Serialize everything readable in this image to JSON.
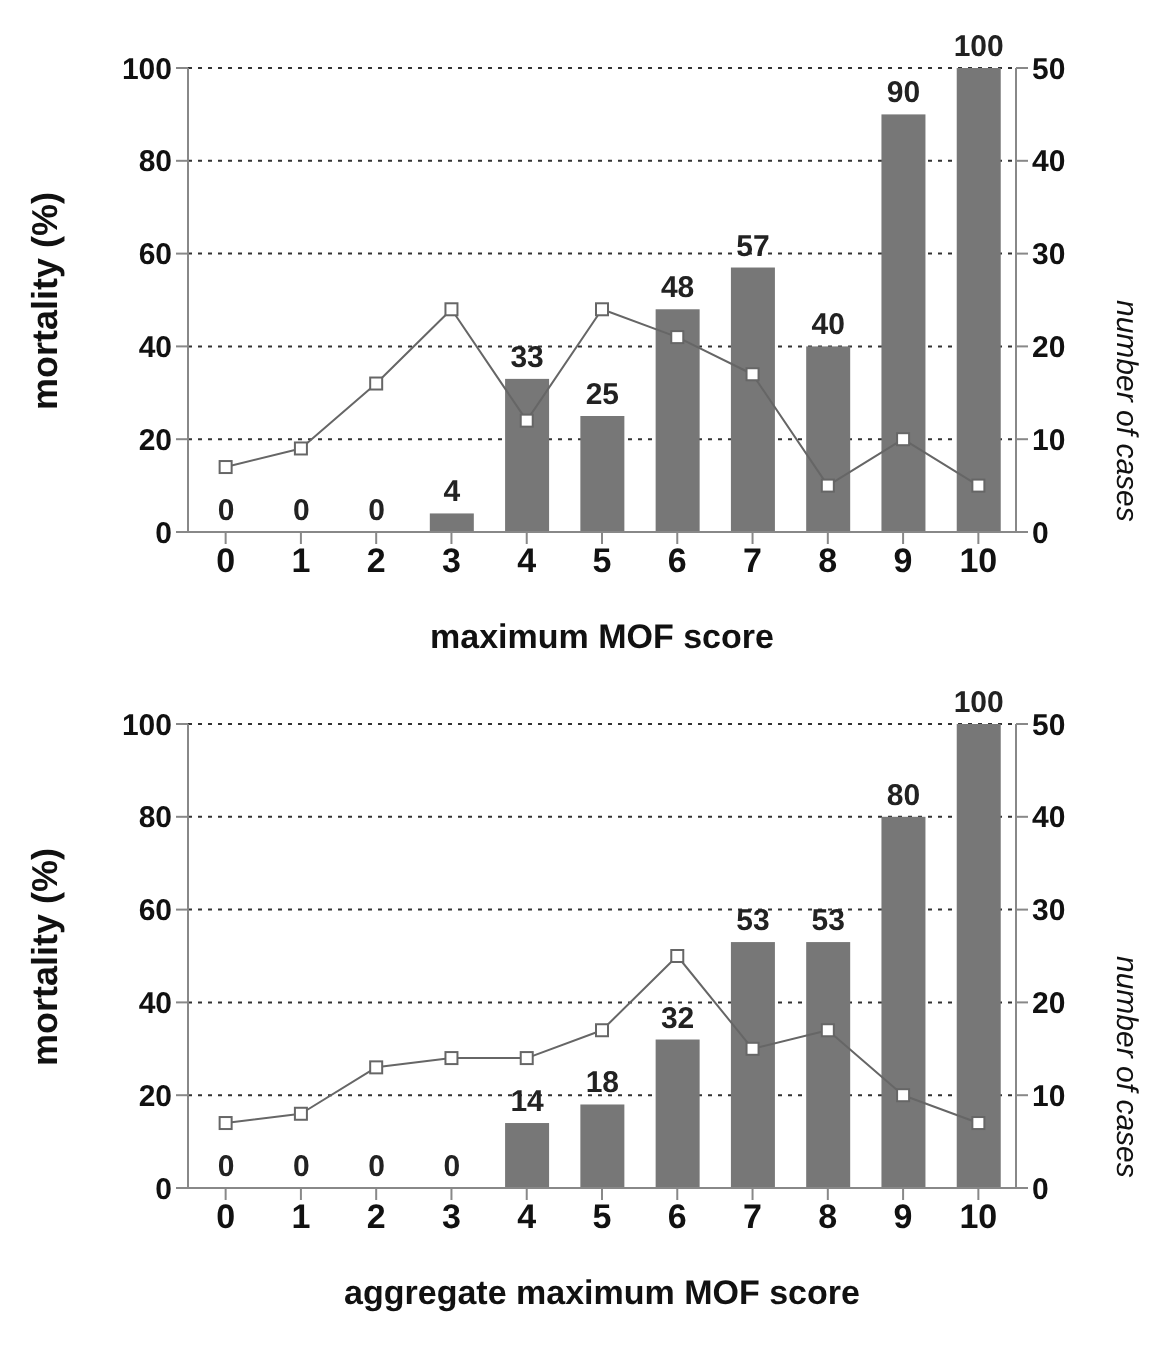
{
  "chart_data": [
    {
      "type": "bar",
      "xlabel": "maximum MOF score",
      "ylabel": "mortality (%)",
      "y2label": "number of cases",
      "categories": [
        "0",
        "1",
        "2",
        "3",
        "4",
        "5",
        "6",
        "7",
        "8",
        "9",
        "10"
      ],
      "ylim": [
        0,
        100
      ],
      "yticks": [
        0,
        20,
        40,
        60,
        80,
        100
      ],
      "y2lim": [
        0,
        50
      ],
      "y2ticks": [
        0,
        10,
        20,
        30,
        40,
        50
      ],
      "grid": "y",
      "legend": false,
      "series": [
        {
          "color": "#777777",
          "values": [
            0,
            0,
            0,
            4,
            33,
            25,
            48,
            57,
            40,
            90,
            100
          ],
          "value_labels": [
            "0",
            "0",
            "0",
            "4",
            "33",
            "25",
            "48",
            "57",
            "40",
            "90",
            "100"
          ]
        },
        {
          "type": "line",
          "axis": "y2",
          "color": "#666666",
          "marker": "square",
          "values": [
            7,
            9,
            16,
            24,
            12,
            24,
            21,
            17,
            5,
            10,
            5
          ]
        }
      ]
    },
    {
      "type": "bar",
      "xlabel": "aggregate maximum MOF score",
      "ylabel": "mortality (%)",
      "y2label": "number of cases",
      "categories": [
        "0",
        "1",
        "2",
        "3",
        "4",
        "5",
        "6",
        "7",
        "8",
        "9",
        "10"
      ],
      "ylim": [
        0,
        100
      ],
      "yticks": [
        0,
        20,
        40,
        60,
        80,
        100
      ],
      "y2lim": [
        0,
        50
      ],
      "y2ticks": [
        0,
        10,
        20,
        30,
        40,
        50
      ],
      "grid": "y",
      "legend": false,
      "series": [
        {
          "color": "#777777",
          "values": [
            0,
            0,
            0,
            0,
            14,
            18,
            32,
            53,
            53,
            80,
            100
          ],
          "value_labels": [
            "0",
            "0",
            "0",
            "0",
            "14",
            "18",
            "32",
            "53",
            "53",
            "80",
            "100"
          ]
        },
        {
          "type": "line",
          "axis": "y2",
          "color": "#666666",
          "marker": "square",
          "values": [
            7,
            8,
            13,
            14,
            14,
            17,
            25,
            15,
            17,
            10,
            7
          ]
        }
      ]
    }
  ]
}
